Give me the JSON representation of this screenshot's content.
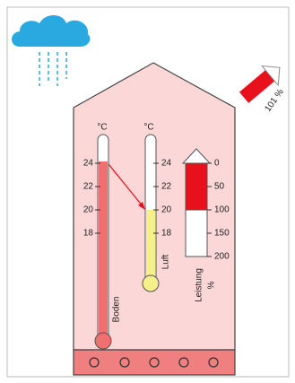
{
  "pump_output": "101 %",
  "floor_thermometer": {
    "unit": "°C",
    "scale": [
      "24",
      "22",
      "20",
      "18"
    ],
    "label": "Boden"
  },
  "air_thermometer": {
    "unit": "°C",
    "scale": [
      "24",
      "22",
      "20",
      "18"
    ],
    "label": "Luft"
  },
  "power_gauge": {
    "scale": [
      "0",
      "50",
      "100",
      "150",
      "200"
    ],
    "label": "Leistung",
    "unit": "%"
  }
}
